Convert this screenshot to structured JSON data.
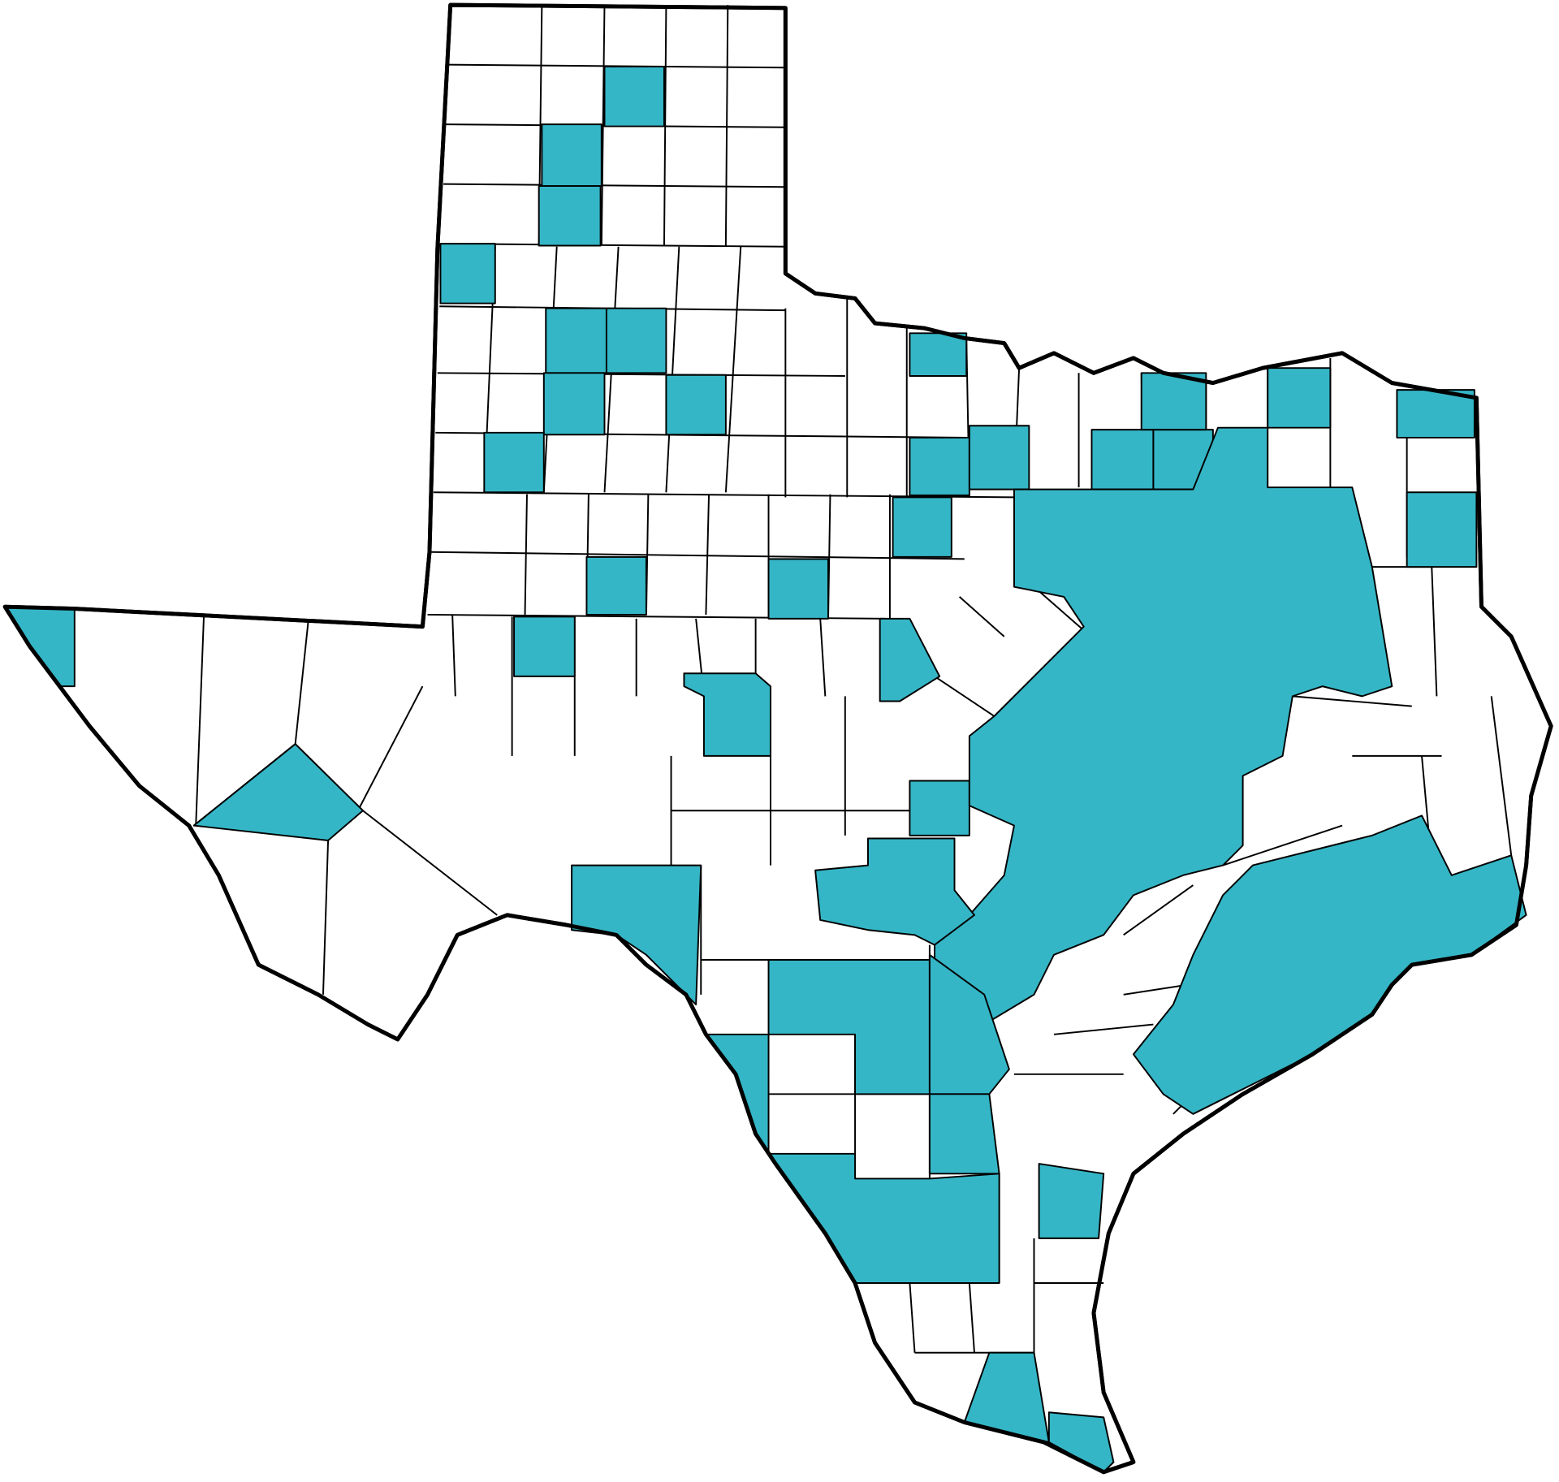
{
  "map": {
    "region": "Texas counties",
    "highlight_color": "#35b6c6",
    "base_color": "#ffffff",
    "border_color": "#000000"
  }
}
